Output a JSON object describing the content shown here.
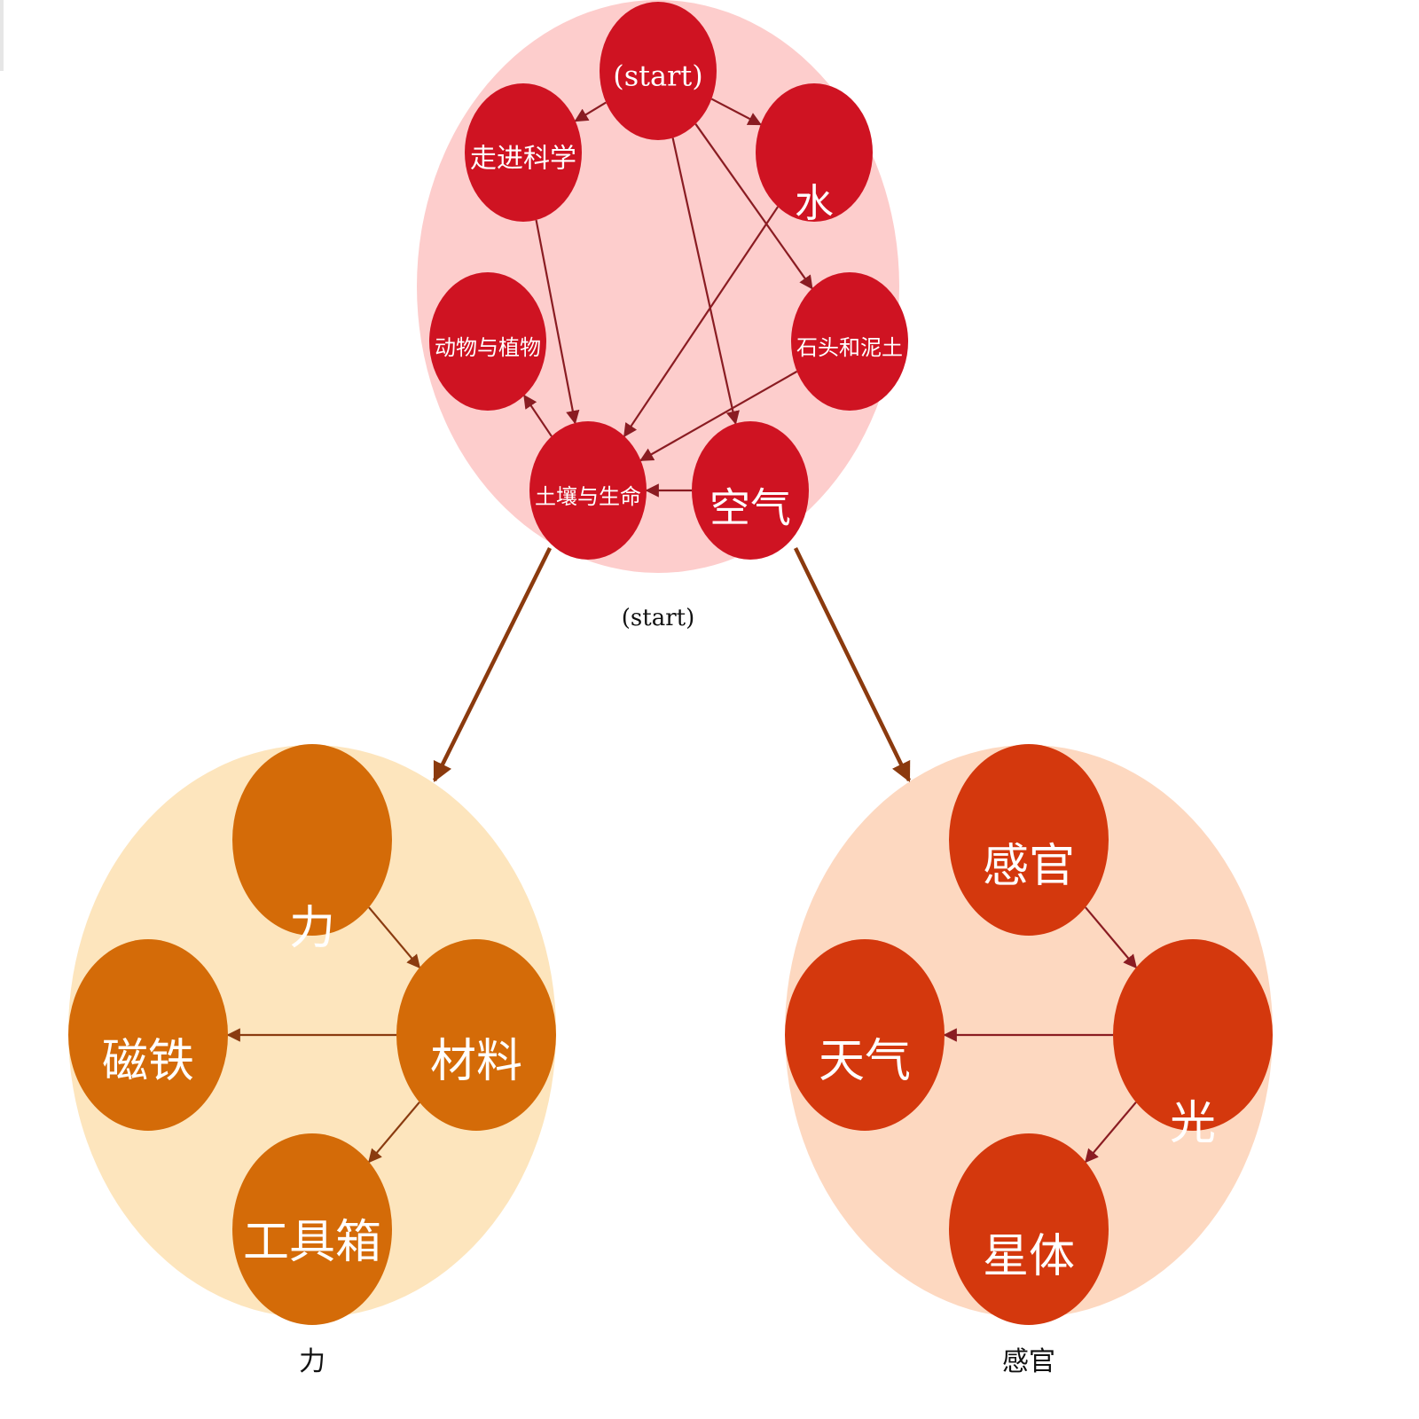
{
  "colors": {
    "edge_dark_red": "#8a1c22",
    "edge_dark_orange": "#8a3b10",
    "cluster_edge": "#8b3a0e"
  },
  "clusters": [
    {
      "id": "start",
      "caption": "(start)",
      "bg": "#fdcdcc",
      "node_color": "#cf1322",
      "edge_color": "#8a1c22",
      "nodes": [
        {
          "id": "start",
          "label": "(start)",
          "serif": true
        },
        {
          "id": "zjkx",
          "label": "走进科学"
        },
        {
          "id": "shui",
          "label": "水"
        },
        {
          "id": "dwzw",
          "label": "动物与植物"
        },
        {
          "id": "stnt",
          "label": "石头和泥土"
        },
        {
          "id": "trsm",
          "label": "土壤与生命"
        },
        {
          "id": "kq",
          "label": "空气"
        }
      ],
      "edges": [
        [
          "start",
          "zjkx"
        ],
        [
          "start",
          "shui"
        ],
        [
          "start",
          "stnt"
        ],
        [
          "start",
          "kq"
        ],
        [
          "zjkx",
          "trsm"
        ],
        [
          "shui",
          "trsm"
        ],
        [
          "stnt",
          "trsm"
        ],
        [
          "kq",
          "trsm"
        ],
        [
          "trsm",
          "dwzw"
        ]
      ]
    },
    {
      "id": "li",
      "caption": "力",
      "bg": "#fde5bd",
      "node_color": "#d46b08",
      "edge_color": "#8a3b10",
      "nodes": [
        {
          "id": "li",
          "label": "力"
        },
        {
          "id": "ct",
          "label": "磁铁"
        },
        {
          "id": "cl",
          "label": "材料"
        },
        {
          "id": "gjx",
          "label": "工具箱"
        }
      ],
      "edges": [
        [
          "li",
          "cl"
        ],
        [
          "cl",
          "ct"
        ],
        [
          "cl",
          "gjx"
        ]
      ]
    },
    {
      "id": "gg",
      "caption": "感官",
      "bg": "#fdd8c0",
      "node_color": "#d4380d",
      "edge_color": "#8a1c22",
      "nodes": [
        {
          "id": "gg",
          "label": "感官"
        },
        {
          "id": "tq",
          "label": "天气"
        },
        {
          "id": "guang",
          "label": "光"
        },
        {
          "id": "xt",
          "label": "星体"
        }
      ],
      "edges": [
        [
          "gg",
          "guang"
        ],
        [
          "guang",
          "tq"
        ],
        [
          "guang",
          "xt"
        ]
      ]
    }
  ],
  "cluster_edges": [
    [
      "start",
      "li"
    ],
    [
      "start",
      "gg"
    ]
  ]
}
